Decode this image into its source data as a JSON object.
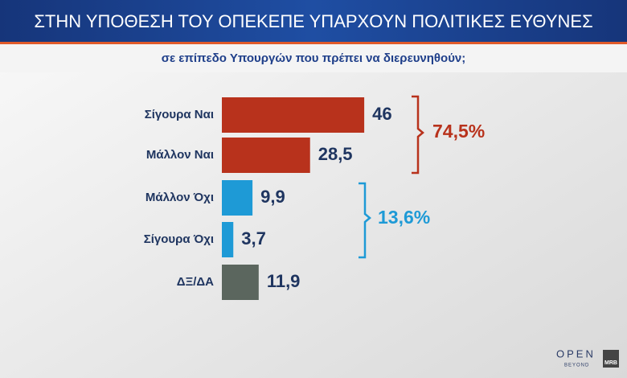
{
  "chart_data": {
    "type": "bar",
    "orientation": "horizontal",
    "title": "ΣΤΗΝ ΥΠΟΘΕΣΗ ΤΟΥ ΟΠΕΚΕΠΕ ΥΠΑΡΧΟΥΝ ΠΟΛΙΤΙΚΕΣ ΕΥΘΥΝΕΣ",
    "subtitle": "σε επίπεδο Υπουργών που πρέπει να διερευνηθούν;",
    "categories": [
      "Σίγουρα Ναι",
      "Μάλλον Ναι",
      "Μάλλον Όχι",
      "Σίγουρα Όχι",
      "ΔΞ/ΔΑ"
    ],
    "values": [
      46,
      28.5,
      9.9,
      3.7,
      11.9
    ],
    "value_labels": [
      "46",
      "28,5",
      "9,9",
      "3,7",
      "11,9"
    ],
    "colors": [
      "#b8321c",
      "#b8321c",
      "#1e9ad6",
      "#1e9ad6",
      "#5b665e"
    ],
    "annotations": [
      {
        "text": "74,5%",
        "color": "#b8321c"
      },
      {
        "text": "13,6%",
        "color": "#1e9ad6"
      }
    ]
  },
  "branding": {
    "channel": "OPEN",
    "channel_tagline": "BEYOND",
    "pollster": "MRB"
  }
}
